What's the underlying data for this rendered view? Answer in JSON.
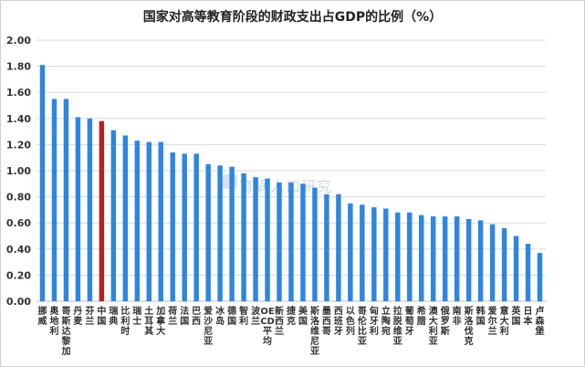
{
  "title": "国家对高等教育阶段的财政支出占GDP的比例（%）",
  "watermark": "育娲人口研究",
  "colors": {
    "bar": "#2e86de",
    "highlight": "#b22222",
    "grid": "#d9d9d9",
    "axis": "#bfbfbf"
  },
  "chart_data": {
    "type": "bar",
    "title": "国家对高等教育阶段的财政支出占GDP的比例（%）",
    "xlabel": "",
    "ylabel": "",
    "ylim": [
      0,
      2.0
    ],
    "yticks": [
      "0.00",
      "0.20",
      "0.40",
      "0.60",
      "0.80",
      "1.00",
      "1.20",
      "1.40",
      "1.60",
      "1.80",
      "2.00"
    ],
    "grid": true,
    "highlight_category": "中国",
    "categories": [
      "挪威",
      "奥地利",
      "哥斯达黎加",
      "丹麦",
      "芬兰",
      "中国",
      "瑞典",
      "比利时",
      "瑞士",
      "土耳其",
      "加拿大",
      "荷兰",
      "法国",
      "巴西",
      "爱沙尼亚",
      "冰岛",
      "德国",
      "智利",
      "波兰",
      "OECD平均",
      "新西兰",
      "捷克",
      "美国",
      "斯洛维尼亚",
      "墨西哥",
      "西班牙",
      "以色列",
      "哥伦比亚",
      "匈牙利",
      "立陶宛",
      "拉脱维亚",
      "葡萄牙",
      "希腊",
      "澳大利亚",
      "俄罗斯",
      "南非",
      "斯洛伐克",
      "韩国",
      "爱尔兰",
      "意大利",
      "英国",
      "日本",
      "卢森堡"
    ],
    "values": [
      1.81,
      1.55,
      1.55,
      1.41,
      1.4,
      1.38,
      1.31,
      1.27,
      1.23,
      1.22,
      1.22,
      1.14,
      1.13,
      1.13,
      1.05,
      1.04,
      1.03,
      0.98,
      0.95,
      0.94,
      0.91,
      0.91,
      0.9,
      0.87,
      0.82,
      0.82,
      0.75,
      0.74,
      0.72,
      0.71,
      0.68,
      0.68,
      0.66,
      0.65,
      0.65,
      0.65,
      0.63,
      0.62,
      0.59,
      0.56,
      0.5,
      0.44,
      0.37
    ]
  }
}
